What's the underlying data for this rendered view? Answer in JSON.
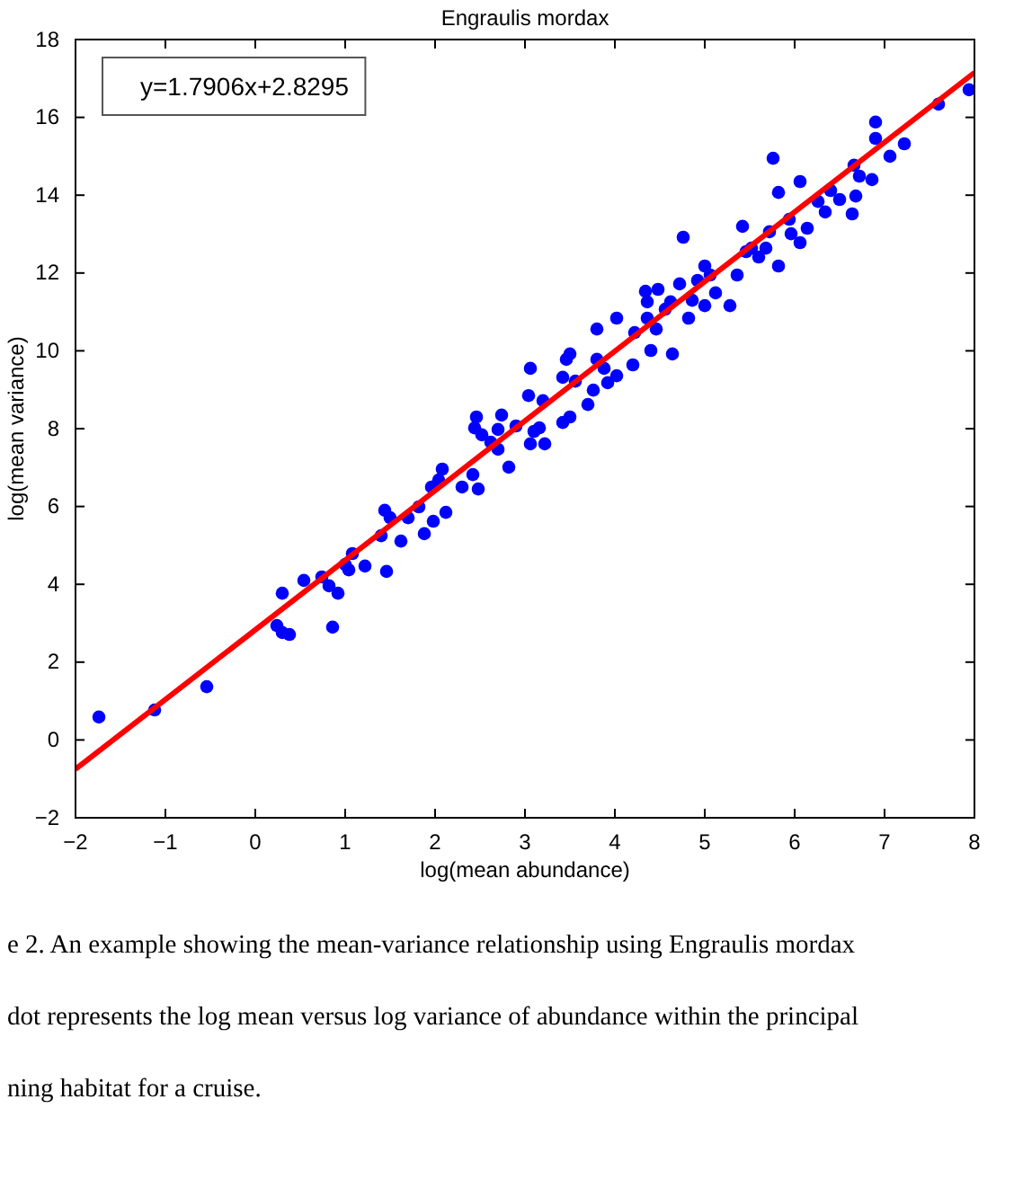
{
  "chart_data": {
    "type": "scatter",
    "title": "Engraulis mordax",
    "xlabel": "log(mean abundance)",
    "ylabel": "log(mean variance)",
    "annotations": [
      "y=1.7906x+2.8295",
      "e 2. An example showing the mean-variance relationship using Engraulis mordax",
      "dot represents the log mean versus log variance of abundance within the principal",
      "ning habitat for a cruise."
    ],
    "xlim": [
      -2,
      8
    ],
    "ylim": [
      -2,
      18
    ],
    "xticks": [
      {
        "value": -2,
        "label": "−2"
      },
      {
        "value": -1,
        "label": "−1"
      },
      0,
      1,
      2,
      3,
      4,
      5,
      6,
      7,
      8
    ],
    "yticks": [
      {
        "value": -2,
        "label": "−2"
      },
      0,
      2,
      4,
      6,
      8,
      10,
      12,
      14,
      16,
      18
    ],
    "grid": false,
    "marker": "circle",
    "series": [
      {
        "color": "#0000ff",
        "x": [
          -1.74,
          -1.12,
          -0.54,
          0.24,
          0.3,
          0.38,
          0.3,
          0.54,
          0.74,
          0.82,
          0.92,
          0.86,
          1.0,
          1.04,
          1.08,
          1.22,
          1.46,
          1.62,
          1.4,
          1.44,
          1.5,
          1.7,
          1.82,
          1.88,
          1.98,
          1.96,
          2.04,
          2.08,
          2.12,
          2.3,
          2.42,
          2.48,
          2.44,
          2.46,
          2.52,
          2.62,
          2.7,
          2.74,
          2.7,
          2.82,
          2.9,
          3.06,
          3.04,
          3.1,
          3.06,
          3.16,
          3.22,
          3.2,
          3.42,
          3.5,
          3.46,
          3.42,
          3.5,
          3.7,
          3.56,
          3.76,
          3.8,
          3.8,
          3.92,
          4.02,
          3.88,
          4.2,
          4.22,
          4.4,
          4.64,
          4.46,
          4.02,
          4.36,
          4.34,
          4.48,
          4.36,
          4.56,
          4.62,
          4.72,
          4.76,
          4.82,
          4.86,
          4.92,
          5.0,
          5.06,
          5.12,
          5.0,
          5.28,
          5.36,
          5.42,
          5.46,
          5.52,
          5.6,
          5.68,
          5.72,
          5.82,
          5.76,
          5.82,
          5.94,
          5.96,
          6.06,
          6.06,
          6.14,
          6.26,
          6.34,
          6.4,
          6.5,
          6.64,
          6.68,
          6.66,
          6.72,
          6.86,
          6.9,
          6.9,
          7.06,
          7.22,
          7.6,
          7.94
        ],
        "values": [
          0.59,
          0.77,
          1.37,
          2.94,
          2.76,
          2.71,
          3.77,
          4.1,
          4.19,
          3.96,
          3.77,
          2.9,
          4.51,
          4.37,
          4.79,
          4.47,
          4.33,
          5.11,
          5.25,
          5.9,
          5.71,
          5.71,
          5.99,
          5.3,
          5.62,
          6.5,
          6.68,
          6.96,
          5.85,
          6.5,
          6.82,
          6.45,
          8.02,
          8.3,
          7.84,
          7.65,
          7.98,
          8.35,
          7.47,
          7.01,
          8.07,
          9.55,
          8.85,
          7.93,
          7.61,
          8.02,
          7.61,
          8.72,
          8.16,
          8.3,
          9.78,
          9.32,
          9.92,
          8.62,
          9.22,
          8.99,
          9.78,
          10.56,
          9.18,
          9.36,
          9.55,
          9.64,
          10.47,
          10.01,
          9.92,
          10.56,
          10.84,
          10.84,
          11.53,
          11.58,
          11.26,
          11.07,
          11.26,
          11.72,
          12.92,
          10.84,
          11.3,
          11.81,
          12.18,
          11.95,
          11.49,
          11.16,
          11.16,
          11.95,
          13.2,
          12.55,
          12.64,
          12.41,
          12.64,
          13.06,
          12.18,
          14.95,
          14.07,
          13.38,
          13.01,
          14.35,
          12.78,
          13.15,
          13.84,
          13.57,
          14.12,
          13.89,
          13.52,
          13.98,
          14.77,
          14.49,
          14.4,
          15.46,
          15.88,
          15.0,
          15.32,
          16.34,
          16.71
        ]
      },
      {
        "type": "line",
        "color": "#ff0000",
        "marker": "none",
        "line_style": "solid",
        "x": [
          -2,
          8
        ],
        "values": [
          -0.75,
          17.15
        ]
      }
    ]
  }
}
